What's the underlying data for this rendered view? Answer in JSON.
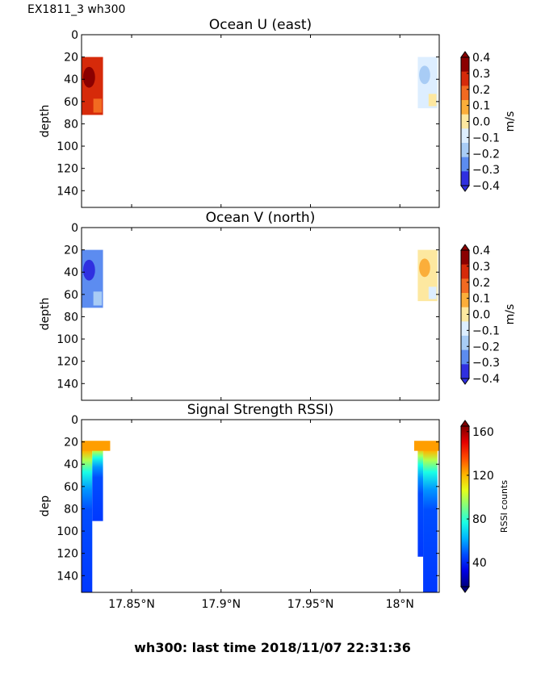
{
  "header": {
    "label": "EX1811_3 wh300"
  },
  "footer": {
    "text": "wh300: last time 2018/11/07 22:31:36"
  },
  "chart_data": [
    {
      "type": "heatmap",
      "title": "Ocean U (east)",
      "ylabel": "depth",
      "ylim": [
        155,
        0
      ],
      "yticks": [
        0,
        20,
        40,
        60,
        80,
        100,
        120,
        140
      ],
      "colorbar": {
        "label": "m/s",
        "ticks": [
          "0.4",
          "0.3",
          "0.2",
          "0.1",
          "0.0",
          "−0.1",
          "−0.2",
          "−0.3",
          "−0.4"
        ],
        "range": [
          -0.4,
          0.4
        ]
      },
      "blocks": [
        {
          "lat": [
            17.822,
            17.834
          ],
          "depth": [
            20,
            72
          ],
          "value": 0.28
        },
        {
          "lat": [
            18.01,
            18.021
          ],
          "depth": [
            20,
            66
          ],
          "value": -0.05
        }
      ]
    },
    {
      "type": "heatmap",
      "title": "Ocean V (north)",
      "ylabel": "depth",
      "ylim": [
        155,
        0
      ],
      "yticks": [
        0,
        20,
        40,
        60,
        80,
        100,
        120,
        140
      ],
      "colorbar": {
        "label": "m/s",
        "ticks": [
          "0.4",
          "0.3",
          "0.2",
          "0.1",
          "0.0",
          "−0.1",
          "−0.2",
          "−0.3",
          "−0.4"
        ],
        "range": [
          -0.4,
          0.4
        ]
      },
      "blocks": [
        {
          "lat": [
            17.822,
            17.834
          ],
          "depth": [
            20,
            72
          ],
          "value": -0.25
        },
        {
          "lat": [
            18.01,
            18.021
          ],
          "depth": [
            20,
            66
          ],
          "value": 0.03
        }
      ]
    },
    {
      "type": "heatmap",
      "title": "Signal Strength RSSI)",
      "ylabel": "dep",
      "ylim": [
        155,
        0
      ],
      "yticks": [
        0,
        20,
        40,
        60,
        80,
        100,
        120,
        140
      ],
      "xlabel": "",
      "xticks": [
        "17.85°N",
        "17.9°N",
        "17.95°N",
        "18°N"
      ],
      "xtick_values": [
        17.85,
        17.9,
        17.95,
        18.0
      ],
      "xlim": [
        17.822,
        18.022
      ],
      "colorbar": {
        "label": "RSSI counts",
        "ticks": [
          "160",
          "120",
          "80",
          "40"
        ],
        "tick_values": [
          160,
          120,
          80,
          40
        ],
        "range": [
          18,
          165
        ]
      },
      "profiles": [
        {
          "lat": [
            17.822,
            17.828
          ],
          "depth_max": 155
        },
        {
          "lat": [
            17.828,
            17.834
          ],
          "depth_max": 91
        },
        {
          "lat": [
            18.01,
            18.013
          ],
          "depth_max": 123
        },
        {
          "lat": [
            18.013,
            18.021
          ],
          "depth_max": 155
        }
      ]
    }
  ]
}
